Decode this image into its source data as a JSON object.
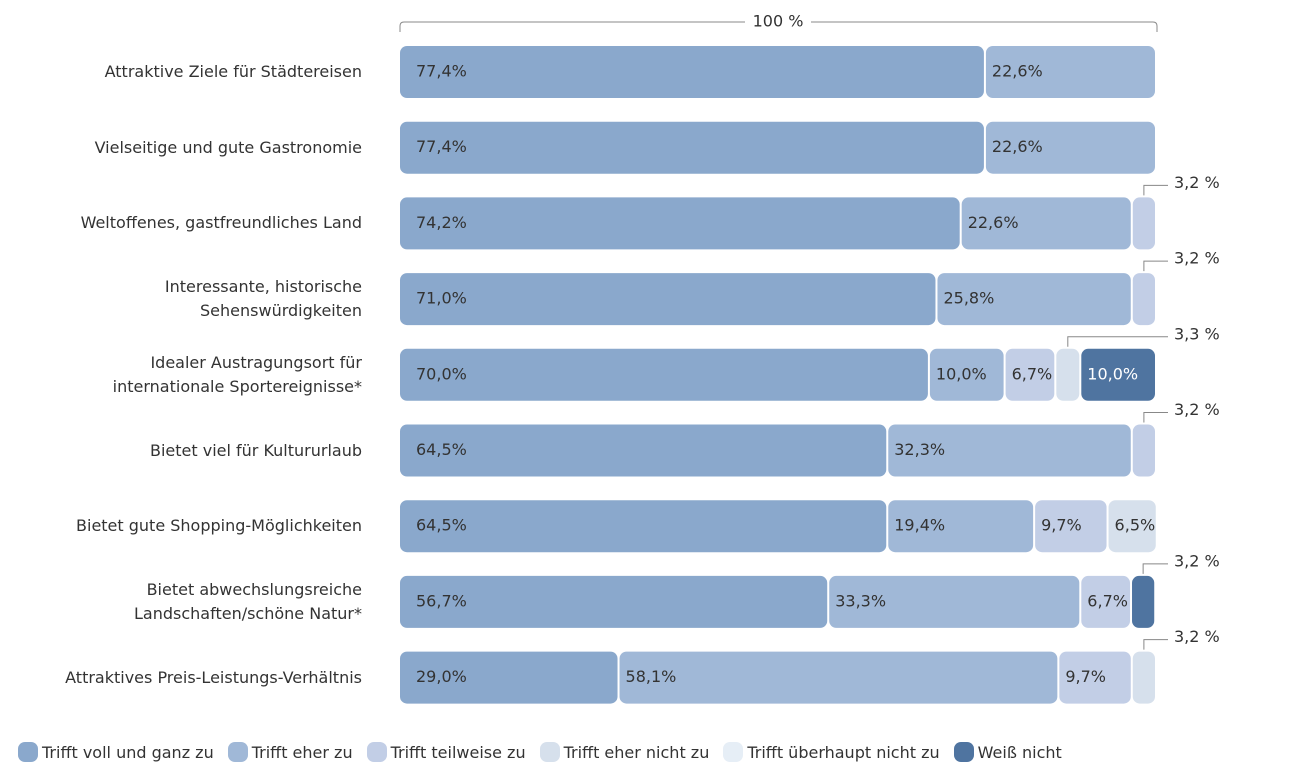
{
  "chart_data": {
    "type": "stacked-bar-horizontal",
    "annotation": "100 %",
    "xlim": [
      0,
      100
    ],
    "categories": [
      "Attraktive Ziele für Städtereisen",
      "Vielseitige und gute Gastronomie",
      "Weltoffenes, gastfreundliches Land",
      "Interessante, historische\nSehenswürdigkeiten",
      "Idealer Austragungsort für\ninternationale Sportereignisse*",
      "Bietet viel für Kultururlaub",
      "Bietet gute Shopping-Möglichkeiten",
      "Bietet abwechslungsreiche\nLandschaften/schöne Natur*",
      "Attraktives Preis-Leistungs-Verhältnis"
    ],
    "series": [
      {
        "name": "Trifft voll und ganz zu",
        "color": "#8aa8cc",
        "values": [
          77.4,
          77.4,
          74.2,
          71.0,
          70.0,
          64.5,
          64.5,
          56.7,
          29.0
        ],
        "value_labels": [
          "77,4%",
          "77,4%",
          "74,2%",
          "71,0%",
          "70,0%",
          "64,5%",
          "64,5%",
          "56,7%",
          "29,0%"
        ]
      },
      {
        "name": "Trifft eher zu",
        "color": "#a0b8d7",
        "values": [
          22.6,
          22.6,
          22.6,
          25.8,
          10.0,
          32.3,
          19.4,
          33.3,
          58.1
        ],
        "value_labels": [
          "22,6%",
          "22,6%",
          "22,6%",
          "25,8%",
          "10,0%",
          "32,3%",
          "19,4%",
          "33,3%",
          "58,1%"
        ]
      },
      {
        "name": "Trifft teilweise zu",
        "color": "#c2cee6",
        "values": [
          null,
          null,
          3.2,
          3.2,
          6.7,
          3.2,
          9.7,
          6.7,
          9.7
        ],
        "value_labels": [
          null,
          null,
          "3,2 %",
          "3,2 %",
          "6,7%",
          "3,2 %",
          "9,7%",
          "6,7%",
          "9,7%"
        ]
      },
      {
        "name": "Trifft eher nicht zu",
        "color": "#d6e0ec",
        "values": [
          null,
          null,
          null,
          null,
          3.3,
          null,
          6.5,
          null,
          3.2
        ],
        "value_labels": [
          null,
          null,
          null,
          null,
          "3,3 %",
          null,
          "6,5%",
          null,
          "3,2 %"
        ]
      },
      {
        "name": "Trifft überhaupt nicht zu",
        "color": "#e6eef6",
        "values": [
          null,
          null,
          null,
          null,
          null,
          null,
          null,
          null,
          null
        ]
      },
      {
        "name": "Weiß nicht",
        "color": "#4f74a0",
        "values": [
          null,
          null,
          null,
          null,
          10.0,
          null,
          null,
          3.2,
          null
        ],
        "value_labels": [
          null,
          null,
          null,
          null,
          "10,0%",
          null,
          null,
          "3,2 %",
          null
        ]
      }
    ]
  }
}
